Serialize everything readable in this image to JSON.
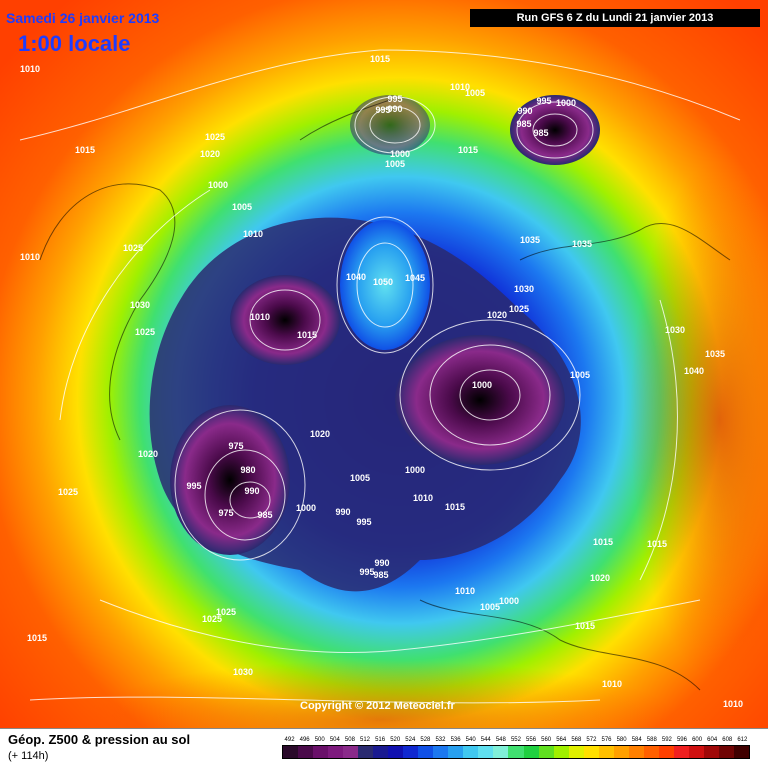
{
  "header": {
    "date": "Samedi 26 janvier 2013",
    "time": "1:00 locale",
    "run": "Run GFS 6 Z du Lundi 21 janvier 2013"
  },
  "copyright": "Copyright © 2012 Meteociel.fr",
  "footer": {
    "title": "Géop. Z500 & pression au sol",
    "subtitle": "(+ 114h)"
  },
  "scale": {
    "values": [
      "492",
      "496",
      "500",
      "504",
      "508",
      "512",
      "516",
      "520",
      "524",
      "528",
      "532",
      "536",
      "540",
      "544",
      "548",
      "552",
      "556",
      "560",
      "564",
      "568",
      "572",
      "576",
      "580",
      "584",
      "588",
      "592",
      "596",
      "600",
      "604",
      "608",
      "612"
    ],
    "colors": [
      "#2a0a2a",
      "#4a0a4a",
      "#6a106a",
      "#7e1a7e",
      "#8a2a8a",
      "#2a2a70",
      "#1a1a90",
      "#1010b0",
      "#1028d0",
      "#1050e6",
      "#1c78f0",
      "#28a0f0",
      "#40c8f0",
      "#60e0f0",
      "#80f0d8",
      "#40e070",
      "#20d040",
      "#60e020",
      "#a0f000",
      "#e0f000",
      "#ffe000",
      "#ffc000",
      "#ffa000",
      "#ff8000",
      "#ff6000",
      "#ff4000",
      "#f02020",
      "#d01010",
      "#a00808",
      "#700404",
      "#400000"
    ]
  },
  "isobar_labels": [
    "1010",
    "1015",
    "1025",
    "1020",
    "1000",
    "1005",
    "1010",
    "1025",
    "1030",
    "1025",
    "1010",
    "1015",
    "995",
    "990",
    "995",
    "1000",
    "1005",
    "1015",
    "1010",
    "1005",
    "995",
    "1000",
    "990",
    "985",
    "985",
    "1025",
    "1035",
    "1035",
    "1040",
    "1050",
    "1045",
    "1030",
    "1025",
    "1020",
    "1010",
    "1015",
    "1030",
    "1035",
    "1040",
    "1005",
    "1000",
    "1020",
    "1020",
    "975",
    "980",
    "995",
    "990",
    "975",
    "985",
    "1000",
    "990",
    "995",
    "1005",
    "1000",
    "1010",
    "1015",
    "990",
    "995",
    "985",
    "1010",
    "1005",
    "1000",
    "1015",
    "1015",
    "1020",
    "1015",
    "1025",
    "1025",
    "1015",
    "1030",
    "1010",
    "1010"
  ]
}
